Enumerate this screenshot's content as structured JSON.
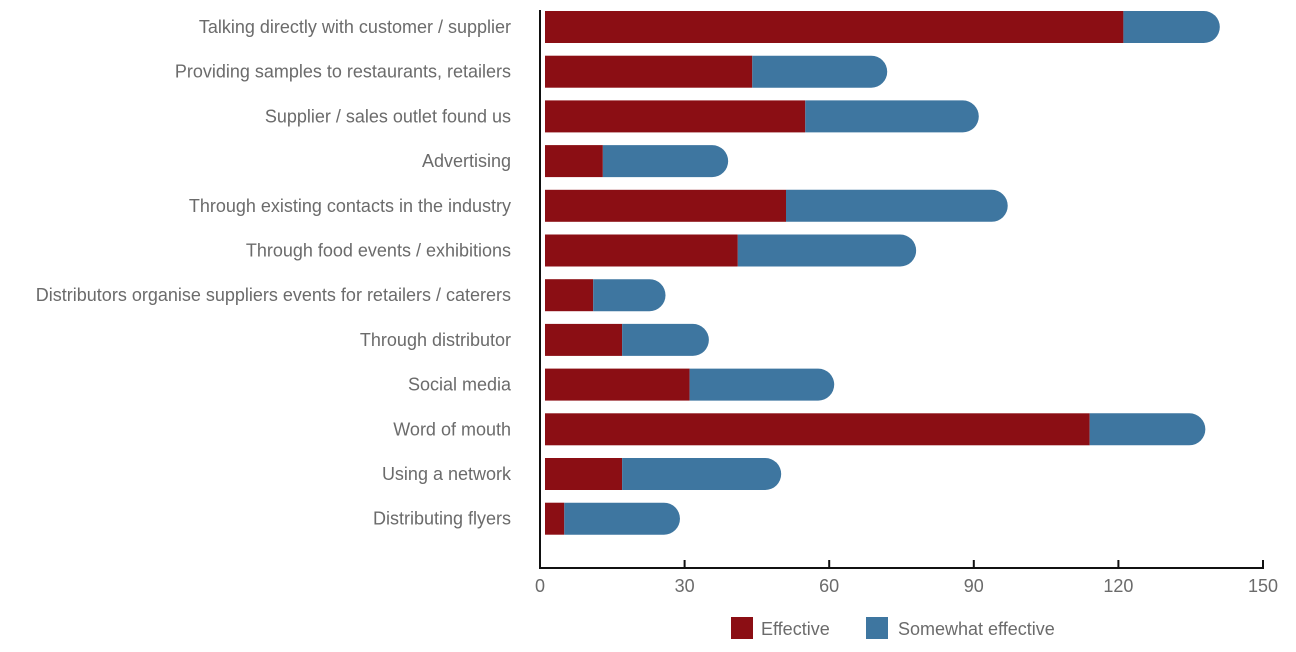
{
  "chart_data": {
    "type": "bar",
    "orientation": "horizontal",
    "stacked": true,
    "categories": [
      "Talking directly with customer / supplier",
      "Providing samples to restaurants, retailers",
      "Supplier / sales outlet found us",
      "Advertising",
      "Through existing contacts in the industry",
      "Through food events / exhibitions",
      "Distributors organise suppliers events for retailers / caterers",
      "Through distributor",
      "Social media",
      "Word of mouth",
      "Using a network",
      "Distributing flyers"
    ],
    "series": [
      {
        "name": "Effective",
        "color": "#8b0e14",
        "values": [
          120,
          43,
          54,
          12,
          50,
          40,
          10,
          16,
          30,
          113,
          16,
          4
        ]
      },
      {
        "name": "Somewhat effective",
        "color": "#3e76a0",
        "values": [
          20,
          28,
          36,
          26,
          46,
          37,
          15,
          18,
          30,
          24,
          33,
          24
        ]
      }
    ],
    "xlim": [
      0,
      150
    ],
    "xticks": [
      "0",
      "30",
      "60",
      "90",
      "120",
      "150"
    ],
    "grid": false,
    "legend": {
      "position": "bottom-right",
      "entries": [
        "Effective",
        "Somewhat effective"
      ]
    },
    "title": "",
    "xlabel": "",
    "ylabel": ""
  }
}
